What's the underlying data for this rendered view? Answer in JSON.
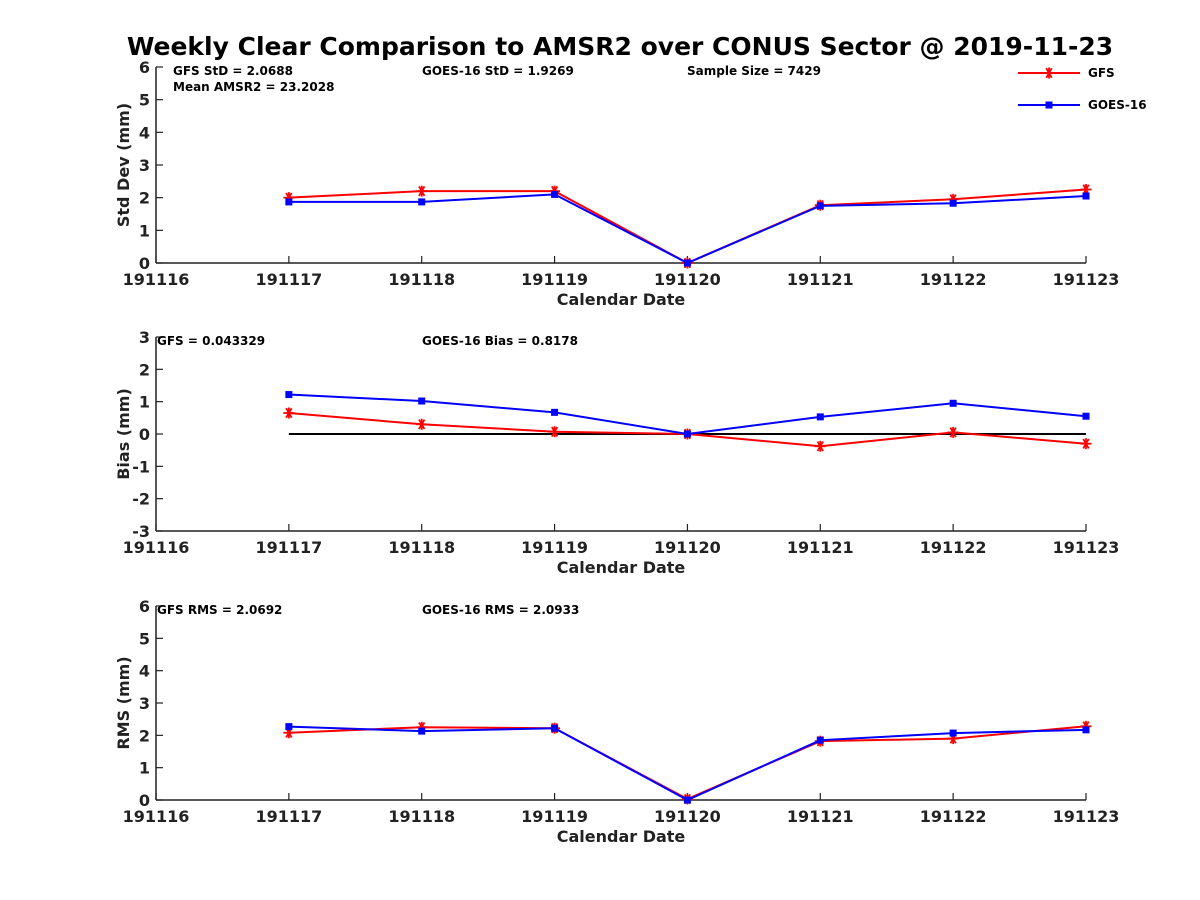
{
  "title": "Weekly Clear Comparison to AMSR2 over CONUS Sector @ 2019-11-23",
  "colors": {
    "GFS": "#ff0000",
    "GOES-16": "#0000ff",
    "zero_line": "#000000"
  },
  "legend": [
    {
      "name": "GFS",
      "marker": "asterisk",
      "color": "#ff0000"
    },
    {
      "name": "GOES-16",
      "marker": "square",
      "color": "#0000ff"
    }
  ],
  "chart_data": [
    {
      "type": "line",
      "xlabel": "Calendar Date",
      "ylabel": "Std Dev (mm)",
      "x": [
        "191116",
        "191117",
        "191118",
        "191119",
        "191120",
        "191121",
        "191122",
        "191123"
      ],
      "ylim": [
        0,
        6
      ],
      "yticks": [
        "0",
        "1",
        "2",
        "3",
        "4",
        "5",
        "6"
      ],
      "annotations": [
        "GFS StD = 2.0688",
        "GOES-16 StD = 1.9269",
        "Sample Size = 7429",
        "Mean AMSR2 = 23.2028"
      ],
      "series": [
        {
          "name": "GFS",
          "marker": "asterisk",
          "color": "#ff0000",
          "x": [
            "191117",
            "191118",
            "191119",
            "191120",
            "191121",
            "191122",
            "191123"
          ],
          "values": [
            2.0,
            2.2,
            2.2,
            0.0,
            1.77,
            1.95,
            2.25
          ]
        },
        {
          "name": "GOES-16",
          "marker": "square",
          "color": "#0000ff",
          "x": [
            "191117",
            "191118",
            "191119",
            "191120",
            "191121",
            "191122",
            "191123"
          ],
          "values": [
            1.87,
            1.87,
            2.1,
            0.0,
            1.75,
            1.83,
            2.05
          ]
        }
      ]
    },
    {
      "type": "line",
      "xlabel": "Calendar Date",
      "ylabel": "Bias (mm)",
      "x": [
        "191116",
        "191117",
        "191118",
        "191119",
        "191120",
        "191121",
        "191122",
        "191123"
      ],
      "ylim": [
        -3,
        3
      ],
      "yticks": [
        "-3",
        "-2",
        "-1",
        "0",
        "1",
        "2",
        "3"
      ],
      "annotations": [
        "GFS = 0.043329",
        "GOES-16 Bias  = 0.8178"
      ],
      "reference_line": {
        "y": 0,
        "x": [
          "191117",
          "191123"
        ]
      },
      "series": [
        {
          "name": "GFS",
          "marker": "asterisk",
          "color": "#ff0000",
          "x": [
            "191117",
            "191118",
            "191119",
            "191120",
            "191121",
            "191122",
            "191123"
          ],
          "values": [
            0.65,
            0.3,
            0.07,
            0.0,
            -0.38,
            0.05,
            -0.3
          ]
        },
        {
          "name": "GOES-16",
          "marker": "square",
          "color": "#0000ff",
          "x": [
            "191117",
            "191118",
            "191119",
            "191120",
            "191121",
            "191122",
            "191123"
          ],
          "values": [
            1.22,
            1.02,
            0.67,
            0.0,
            0.53,
            0.95,
            0.55
          ]
        }
      ]
    },
    {
      "type": "line",
      "xlabel": "Calendar Date",
      "ylabel": "RMS (mm)",
      "x": [
        "191116",
        "191117",
        "191118",
        "191119",
        "191120",
        "191121",
        "191122",
        "191123"
      ],
      "ylim": [
        0,
        6
      ],
      "yticks": [
        "0",
        "1",
        "2",
        "3",
        "4",
        "5",
        "6"
      ],
      "annotations": [
        "GFS RMS = 2.0692",
        "GOES-16 RMS = 2.0933"
      ],
      "series": [
        {
          "name": "GFS",
          "marker": "asterisk",
          "color": "#ff0000",
          "x": [
            "191117",
            "191118",
            "191119",
            "191120",
            "191121",
            "191122",
            "191123"
          ],
          "values": [
            2.08,
            2.25,
            2.22,
            0.03,
            1.82,
            1.9,
            2.28
          ]
        },
        {
          "name": "GOES-16",
          "marker": "square",
          "color": "#0000ff",
          "x": [
            "191117",
            "191118",
            "191119",
            "191120",
            "191121",
            "191122",
            "191123"
          ],
          "values": [
            2.27,
            2.13,
            2.22,
            0.0,
            1.85,
            2.07,
            2.17
          ]
        }
      ]
    }
  ]
}
